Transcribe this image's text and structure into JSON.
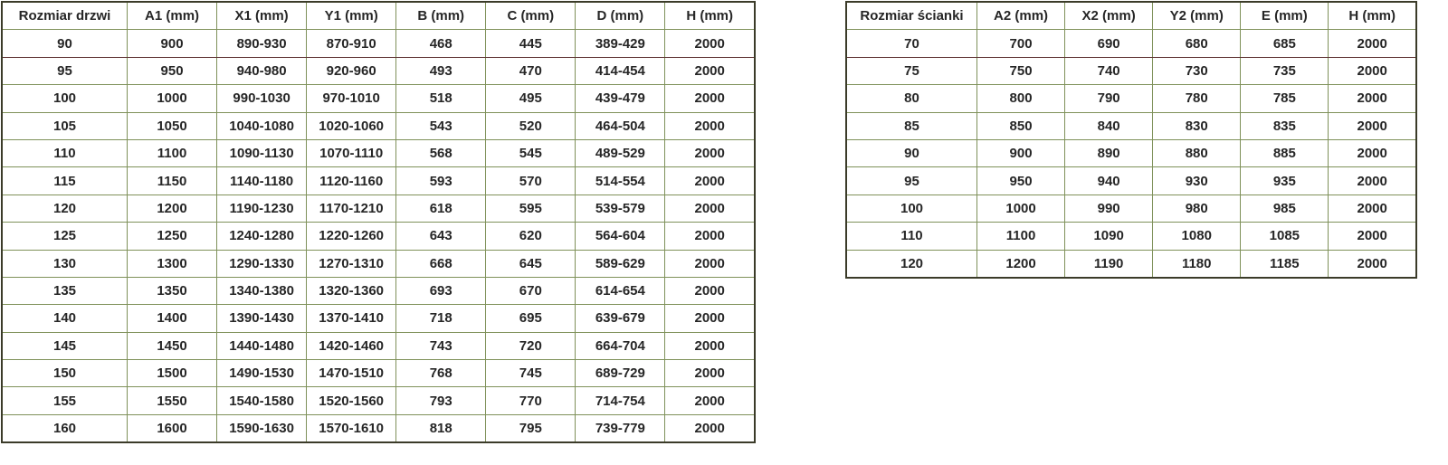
{
  "colors": {
    "border_green": "#7f915a",
    "border_maroon": "#5e3333",
    "outer_border": "#3b3b29",
    "text": "#262626",
    "background": "#ffffff"
  },
  "door_table": {
    "headers": [
      "Rozmiar drzwi",
      "A1 (mm)",
      "X1 (mm)",
      "Y1 (mm)",
      "B (mm)",
      "C (mm)",
      "D (mm)",
      "H (mm)"
    ],
    "rows": [
      [
        "90",
        "900",
        "890-930",
        "870-910",
        "468",
        "445",
        "389-429",
        "2000"
      ],
      [
        "95",
        "950",
        "940-980",
        "920-960",
        "493",
        "470",
        "414-454",
        "2000"
      ],
      [
        "100",
        "1000",
        "990-1030",
        "970-1010",
        "518",
        "495",
        "439-479",
        "2000"
      ],
      [
        "105",
        "1050",
        "1040-1080",
        "1020-1060",
        "543",
        "520",
        "464-504",
        "2000"
      ],
      [
        "110",
        "1100",
        "1090-1130",
        "1070-1110",
        "568",
        "545",
        "489-529",
        "2000"
      ],
      [
        "115",
        "1150",
        "1140-1180",
        "1120-1160",
        "593",
        "570",
        "514-554",
        "2000"
      ],
      [
        "120",
        "1200",
        "1190-1230",
        "1170-1210",
        "618",
        "595",
        "539-579",
        "2000"
      ],
      [
        "125",
        "1250",
        "1240-1280",
        "1220-1260",
        "643",
        "620",
        "564-604",
        "2000"
      ],
      [
        "130",
        "1300",
        "1290-1330",
        "1270-1310",
        "668",
        "645",
        "589-629",
        "2000"
      ],
      [
        "135",
        "1350",
        "1340-1380",
        "1320-1360",
        "693",
        "670",
        "614-654",
        "2000"
      ],
      [
        "140",
        "1400",
        "1390-1430",
        "1370-1410",
        "718",
        "695",
        "639-679",
        "2000"
      ],
      [
        "145",
        "1450",
        "1440-1480",
        "1420-1460",
        "743",
        "720",
        "664-704",
        "2000"
      ],
      [
        "150",
        "1500",
        "1490-1530",
        "1470-1510",
        "768",
        "745",
        "689-729",
        "2000"
      ],
      [
        "155",
        "1550",
        "1540-1580",
        "1520-1560",
        "793",
        "770",
        "714-754",
        "2000"
      ],
      [
        "160",
        "1600",
        "1590-1630",
        "1570-1610",
        "818",
        "795",
        "739-779",
        "2000"
      ]
    ]
  },
  "wall_table": {
    "headers": [
      "Rozmiar ścianki",
      "A2 (mm)",
      "X2 (mm)",
      "Y2 (mm)",
      "E (mm)",
      "H (mm)"
    ],
    "rows": [
      [
        "70",
        "700",
        "690",
        "680",
        "685",
        "2000"
      ],
      [
        "75",
        "750",
        "740",
        "730",
        "735",
        "2000"
      ],
      [
        "80",
        "800",
        "790",
        "780",
        "785",
        "2000"
      ],
      [
        "85",
        "850",
        "840",
        "830",
        "835",
        "2000"
      ],
      [
        "90",
        "900",
        "890",
        "880",
        "885",
        "2000"
      ],
      [
        "95",
        "950",
        "940",
        "930",
        "935",
        "2000"
      ],
      [
        "100",
        "1000",
        "990",
        "980",
        "985",
        "2000"
      ],
      [
        "110",
        "1100",
        "1090",
        "1080",
        "1085",
        "2000"
      ],
      [
        "120",
        "1200",
        "1190",
        "1180",
        "1185",
        "2000"
      ]
    ]
  }
}
